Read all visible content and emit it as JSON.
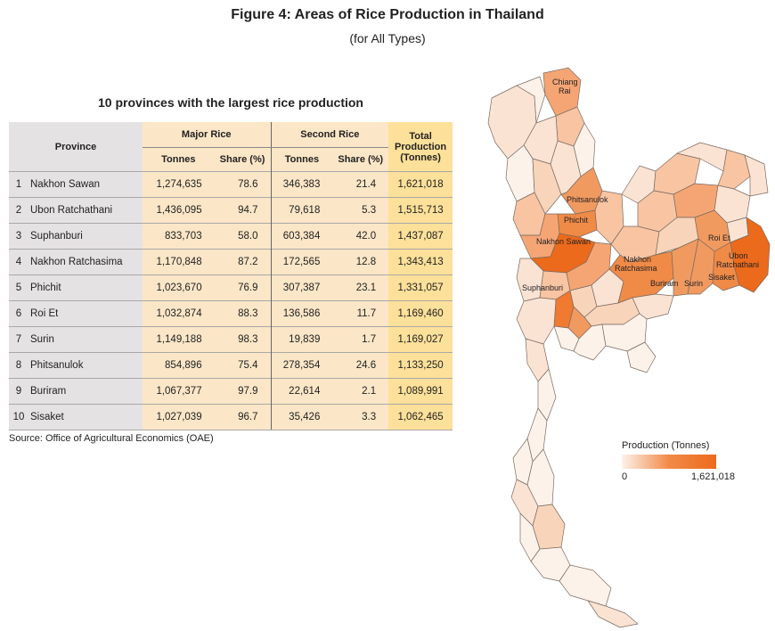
{
  "figure": {
    "title": "Figure 4: Areas of Rice Production  in Thailand",
    "subtitle": "(for All Types)"
  },
  "table": {
    "title": "10 provinces with the largest rice production",
    "headers": {
      "province": "Province",
      "major_rice": "Major Rice",
      "second_rice": "Second Rice",
      "total_line1": "Total",
      "total_line2": "Production",
      "total_line3": "(Tonnes)",
      "tonnes": "Tonnes",
      "share": "Share (%)"
    },
    "rows": [
      {
        "rank": "1",
        "province": "Nakhon Sawan",
        "major_t": "1,274,635",
        "major_s": "78.6",
        "second_t": "346,383",
        "second_s": "21.4",
        "total": "1,621,018"
      },
      {
        "rank": "2",
        "province": "Ubon Ratchathani",
        "major_t": "1,436,095",
        "major_s": "94.7",
        "second_t": "79,618",
        "second_s": "5.3",
        "total": "1,515,713"
      },
      {
        "rank": "3",
        "province": "Suphanburi",
        "major_t": "833,703",
        "major_s": "58.0",
        "second_t": "603,384",
        "second_s": "42.0",
        "total": "1,437,087"
      },
      {
        "rank": "4",
        "province": "Nakhon Ratchasima",
        "major_t": "1,170,848",
        "major_s": "87.2",
        "second_t": "172,565",
        "second_s": "12.8",
        "total": "1,343,413"
      },
      {
        "rank": "5",
        "province": "Phichit",
        "major_t": "1,023,670",
        "major_s": "76.9",
        "second_t": "307,387",
        "second_s": "23.1",
        "total": "1,331,057"
      },
      {
        "rank": "6",
        "province": "Roi Et",
        "major_t": "1,032,874",
        "major_s": "88.3",
        "second_t": "136,586",
        "second_s": "11.7",
        "total": "1,169,460"
      },
      {
        "rank": "7",
        "province": "Surin",
        "major_t": "1,149,188",
        "major_s": "98.3",
        "second_t": "19,839",
        "second_s": "1.7",
        "total": "1,169,027"
      },
      {
        "rank": "8",
        "province": "Phitsanulok",
        "major_t": "854,896",
        "major_s": "75.4",
        "second_t": "278,354",
        "second_s": "24.6",
        "total": "1,133,250"
      },
      {
        "rank": "9",
        "province": "Buriram",
        "major_t": "1,067,377",
        "major_s": "97.9",
        "second_t": "22,614",
        "second_s": "2.1",
        "total": "1,089,991"
      },
      {
        "rank": "10",
        "province": "Sisaket",
        "major_t": "1,027,039",
        "major_s": "96.7",
        "second_t": "35,426",
        "second_s": "3.3",
        "total": "1,062,465"
      }
    ]
  },
  "source": "Source: Office of Agricultural Economics (OAE)",
  "map": {
    "labels": {
      "chiang_rai_1": "Chiang",
      "chiang_rai_2": "Rai",
      "phitsanulok": "Phitsanulok",
      "phichit": "Phichit",
      "nakhon_sawan": "Nakhon Sawan",
      "roi_et": "Roi Et",
      "ubon_1": "Ubon",
      "ubon_2": "Ratchathani",
      "nakhon_ratchasima_1": "Nakhon",
      "nakhon_ratchasima_2": "Ratchasima",
      "suphanburi": "Suphanburi",
      "buriram": "Buriram",
      "surin": "Surin",
      "sisaket": "Sisaket"
    },
    "colors": {
      "low": "#fdf2ea",
      "mid": "#f7c4a0",
      "high": "#ec6a1c",
      "border": "#7a6a60"
    }
  },
  "legend": {
    "title": "Production (Tonnes)",
    "min": "0",
    "max": "1,621,018"
  }
}
